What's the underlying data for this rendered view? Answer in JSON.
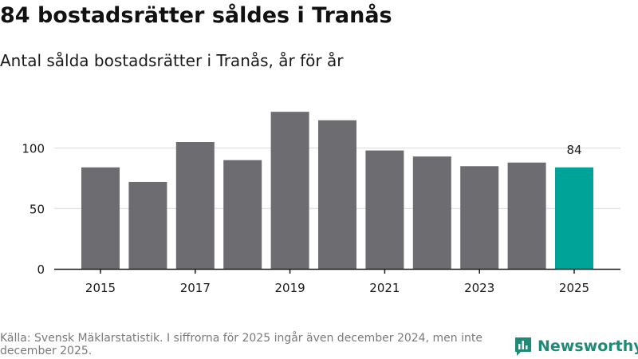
{
  "header": {
    "title": "84 bostadsrätter såldes i Tranås",
    "subtitle": "Antal sålda bostadsrätter i Tranås, år för år"
  },
  "footer": {
    "source": "Källa: Svensk Mäklarstatistik. I siffrorna för 2025 ingår även december 2024, men inte december 2025.",
    "brand": "Newsworthy"
  },
  "colors": {
    "bar": "#6d6c71",
    "highlight": "#00a398",
    "grid": "#d9d9d9",
    "axis": "#1a1a1a",
    "brand": "#1f8a78"
  },
  "chart_data": {
    "type": "bar",
    "title": "84 bostadsrätter såldes i Tranås",
    "subtitle": "Antal sålda bostadsrätter i Tranås, år för år",
    "categories": [
      "2015",
      "2016",
      "2017",
      "2018",
      "2019",
      "2020",
      "2021",
      "2022",
      "2023",
      "2024",
      "2025"
    ],
    "values": [
      84,
      72,
      105,
      90,
      130,
      123,
      98,
      93,
      85,
      88,
      84
    ],
    "highlight_index": 10,
    "data_label": "84",
    "xticks": [
      "2015",
      "2017",
      "2019",
      "2021",
      "2023",
      "2025"
    ],
    "yticks": [
      0,
      50,
      100
    ],
    "ylim": [
      0,
      140
    ],
    "xlabel": "",
    "ylabel": "",
    "grid": true,
    "legend": "none"
  }
}
